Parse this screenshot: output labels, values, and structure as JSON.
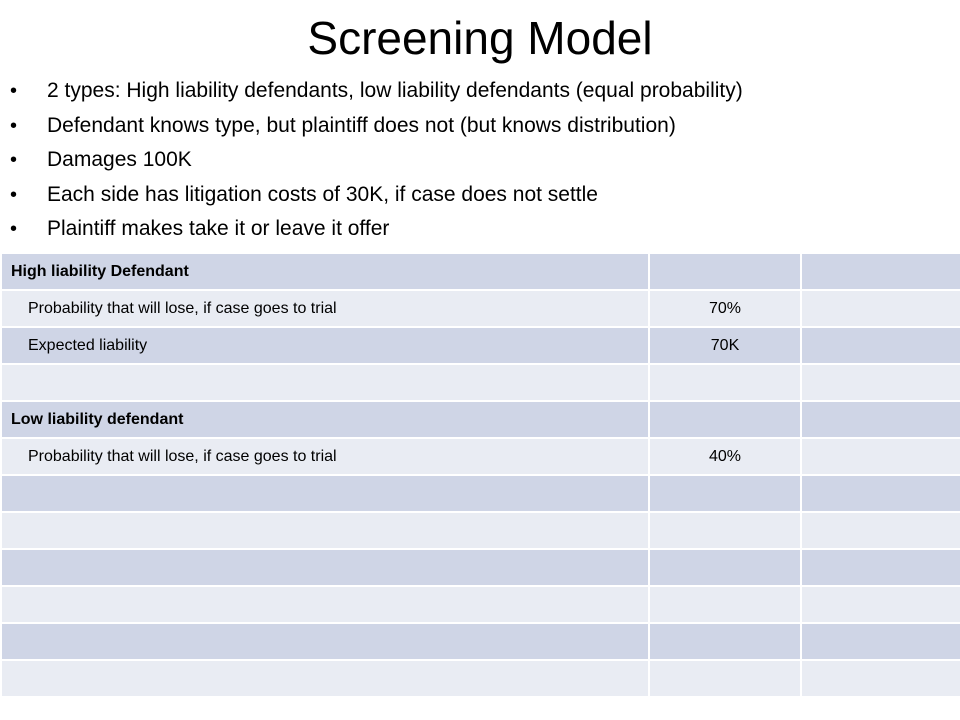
{
  "slide": {
    "title": "Screening Model",
    "bullets": [
      "2 types: High liability defendants, low liability defendants (equal probability)",
      "Defendant knows type, but plaintiff does not (but knows distribution)",
      "Damages 100K",
      "Each side has litigation costs of 30K, if case does not settle",
      "Plaintiff makes take it or leave it offer"
    ]
  },
  "table": {
    "rows": [
      {
        "label": "High liability Defendant",
        "value": "",
        "extra": "",
        "style": "head"
      },
      {
        "label": "Probability that will lose, if case goes to trial",
        "value": "70%",
        "extra": "",
        "style": "indent"
      },
      {
        "label": "Expected liability",
        "value": "70K",
        "extra": "",
        "style": "indent"
      },
      {
        "label": "",
        "value": "",
        "extra": "",
        "style": "indent"
      },
      {
        "label": "Low liability defendant",
        "value": "",
        "extra": "",
        "style": "head"
      },
      {
        "label": "Probability that will lose, if case goes to trial",
        "value": "40%",
        "extra": "",
        "style": "indent"
      },
      {
        "label": "",
        "value": "",
        "extra": "",
        "style": "indent"
      },
      {
        "label": "",
        "value": "",
        "extra": "",
        "style": "indent"
      },
      {
        "label": "",
        "value": "",
        "extra": "",
        "style": "indent"
      },
      {
        "label": "",
        "value": "",
        "extra": "",
        "style": "indent"
      },
      {
        "label": "",
        "value": "",
        "extra": "",
        "style": "indent"
      },
      {
        "label": "",
        "value": "",
        "extra": "",
        "style": "indent"
      }
    ]
  },
  "colors": {
    "row_dark": "#cfd5e6",
    "row_light": "#e9ecf3",
    "background": "#ffffff"
  }
}
